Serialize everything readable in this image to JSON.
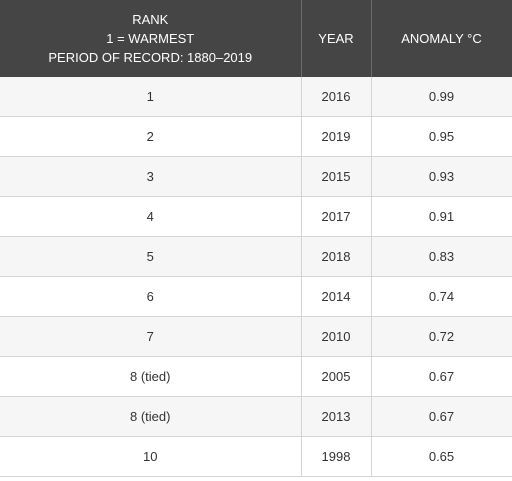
{
  "header": {
    "rank_line1": "RANK",
    "rank_line2": "1 = WARMEST",
    "rank_line3": "PERIOD OF RECORD: 1880–2019",
    "year": "YEAR",
    "anomaly": "ANOMALY °C"
  },
  "rows": [
    {
      "rank": "1",
      "year": "2016",
      "anomaly": "0.99"
    },
    {
      "rank": "2",
      "year": "2019",
      "anomaly": "0.95"
    },
    {
      "rank": "3",
      "year": "2015",
      "anomaly": "0.93"
    },
    {
      "rank": "4",
      "year": "2017",
      "anomaly": "0.91"
    },
    {
      "rank": "5",
      "year": "2018",
      "anomaly": "0.83"
    },
    {
      "rank": "6",
      "year": "2014",
      "anomaly": "0.74"
    },
    {
      "rank": "7",
      "year": "2010",
      "anomaly": "0.72"
    },
    {
      "rank": "8 (tied)",
      "year": "2005",
      "anomaly": "0.67"
    },
    {
      "rank": "8 (tied)",
      "year": "2013",
      "anomaly": "0.67"
    },
    {
      "rank": "10",
      "year": "1998",
      "anomaly": "0.65"
    }
  ],
  "colors": {
    "header_bg": "#454545",
    "header_text": "#ffffff",
    "row_alt_bg": "#f6f6f6",
    "row_bg": "#ffffff",
    "grid_line": "#d4d4d4"
  }
}
